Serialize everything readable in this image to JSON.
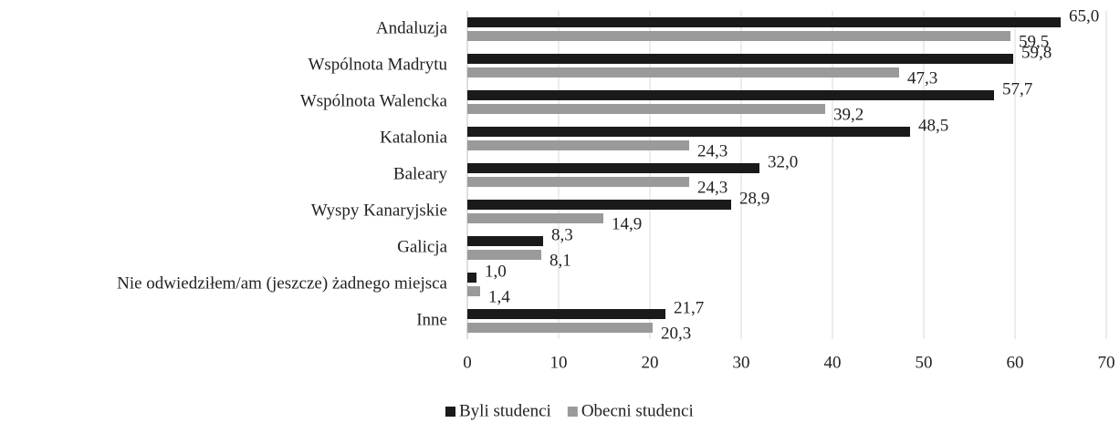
{
  "chart_data": {
    "type": "bar",
    "orientation": "horizontal",
    "categories": [
      "Andaluzja",
      "Wspólnota Madrytu",
      "Wspólnota Walencka",
      "Katalonia",
      "Baleary",
      "Wyspy Kanaryjskie",
      "Galicja",
      "Nie odwiedziłem/am (jeszcze) żadnego miejsca",
      "Inne"
    ],
    "series": [
      {
        "name": "Byli studenci",
        "color": "#1a1a1a",
        "values": [
          65.0,
          59.8,
          57.7,
          48.5,
          32.0,
          28.9,
          8.3,
          1.0,
          21.7
        ],
        "value_labels": [
          "65,0",
          "59,8",
          "57,7",
          "48,5",
          "32,0",
          "28,9",
          "8,3",
          "1,0",
          "21,7"
        ]
      },
      {
        "name": "Obecni studenci",
        "color": "#9a9a9a",
        "values": [
          59.5,
          47.3,
          39.2,
          24.3,
          24.3,
          14.9,
          8.1,
          1.4,
          20.3
        ],
        "value_labels": [
          "59,5",
          "47,3",
          "39,2",
          "24,3",
          "24,3",
          "14,9",
          "8,1",
          "1,4",
          "20,3"
        ]
      }
    ],
    "xlim": [
      0,
      70
    ],
    "xticks": [
      0,
      10,
      20,
      30,
      40,
      50,
      60,
      70
    ],
    "grid": true,
    "legend": "bottom"
  }
}
